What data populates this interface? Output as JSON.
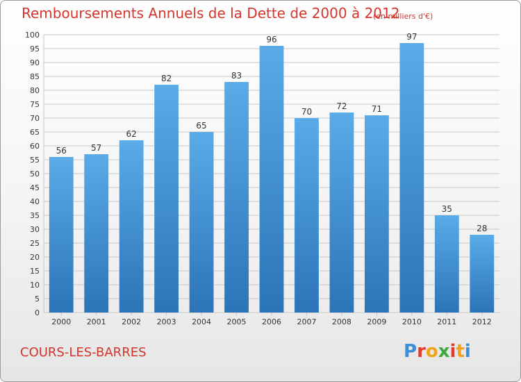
{
  "title": "Remboursements Annuels de la Dette de 2000 à 2012",
  "subtitle": "(en milliers d'€)",
  "commune": "COURS-LES-BARRES",
  "brand": {
    "letters": [
      "P",
      "r",
      "o",
      "x",
      "i",
      "t",
      "i"
    ],
    "colors": [
      "#3a8fd8",
      "#e53a2e",
      "#f2a31c",
      "#3fa83a",
      "#e53a2e",
      "#f2a31c",
      "#3a8fd8"
    ]
  },
  "colors": {
    "accent": "#d4342c",
    "bar_top": "#5aabe8",
    "bar_bottom": "#2b74b8",
    "grid": "#c8c8c8",
    "axis_text": "#333333"
  },
  "chart_data": {
    "type": "bar",
    "categories": [
      "2000",
      "2001",
      "2002",
      "2003",
      "2004",
      "2005",
      "2006",
      "2007",
      "2008",
      "2009",
      "2010",
      "2011",
      "2012"
    ],
    "values": [
      56,
      57,
      62,
      82,
      65,
      83,
      96,
      70,
      72,
      71,
      97,
      35,
      28
    ],
    "ylim": [
      0,
      100
    ],
    "ytick_step": 5,
    "grid": true,
    "data_labels": true
  }
}
